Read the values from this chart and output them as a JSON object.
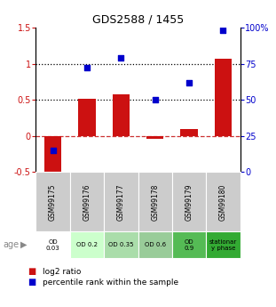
{
  "title": "GDS2588 / 1455",
  "samples": [
    "GSM99175",
    "GSM99176",
    "GSM99177",
    "GSM99178",
    "GSM99179",
    "GSM99180"
  ],
  "log2_ratio": [
    -0.53,
    0.52,
    0.57,
    -0.04,
    0.1,
    1.07
  ],
  "percentile_rank_pct": [
    15,
    72,
    79,
    50,
    62,
    98
  ],
  "bar_color": "#cc1111",
  "dot_color": "#0000cc",
  "ylim_left": [
    -0.5,
    1.5
  ],
  "ylim_right": [
    0,
    100
  ],
  "yticks_left": [
    -0.5,
    0,
    0.5,
    1.0,
    1.5
  ],
  "ytick_labels_left": [
    "-0.5",
    "0",
    "0.5",
    "1",
    "1.5"
  ],
  "yticks_right": [
    0,
    25,
    50,
    75,
    100
  ],
  "ytick_labels_right": [
    "0",
    "25",
    "50",
    "75",
    "100%"
  ],
  "age_labels": [
    "OD\n0.03",
    "OD 0.2",
    "OD 0.35",
    "OD 0.6",
    "OD\n0.9",
    "stationar\ny phase"
  ],
  "age_colors": [
    "#ffffff",
    "#ccffcc",
    "#aaddaa",
    "#99cc99",
    "#55bb55",
    "#33aa33"
  ],
  "sample_row_color": "#cccccc",
  "legend_bar_label": "log2 ratio",
  "legend_dot_label": "percentile rank within the sample",
  "age_label": "age",
  "bar_width": 0.5
}
